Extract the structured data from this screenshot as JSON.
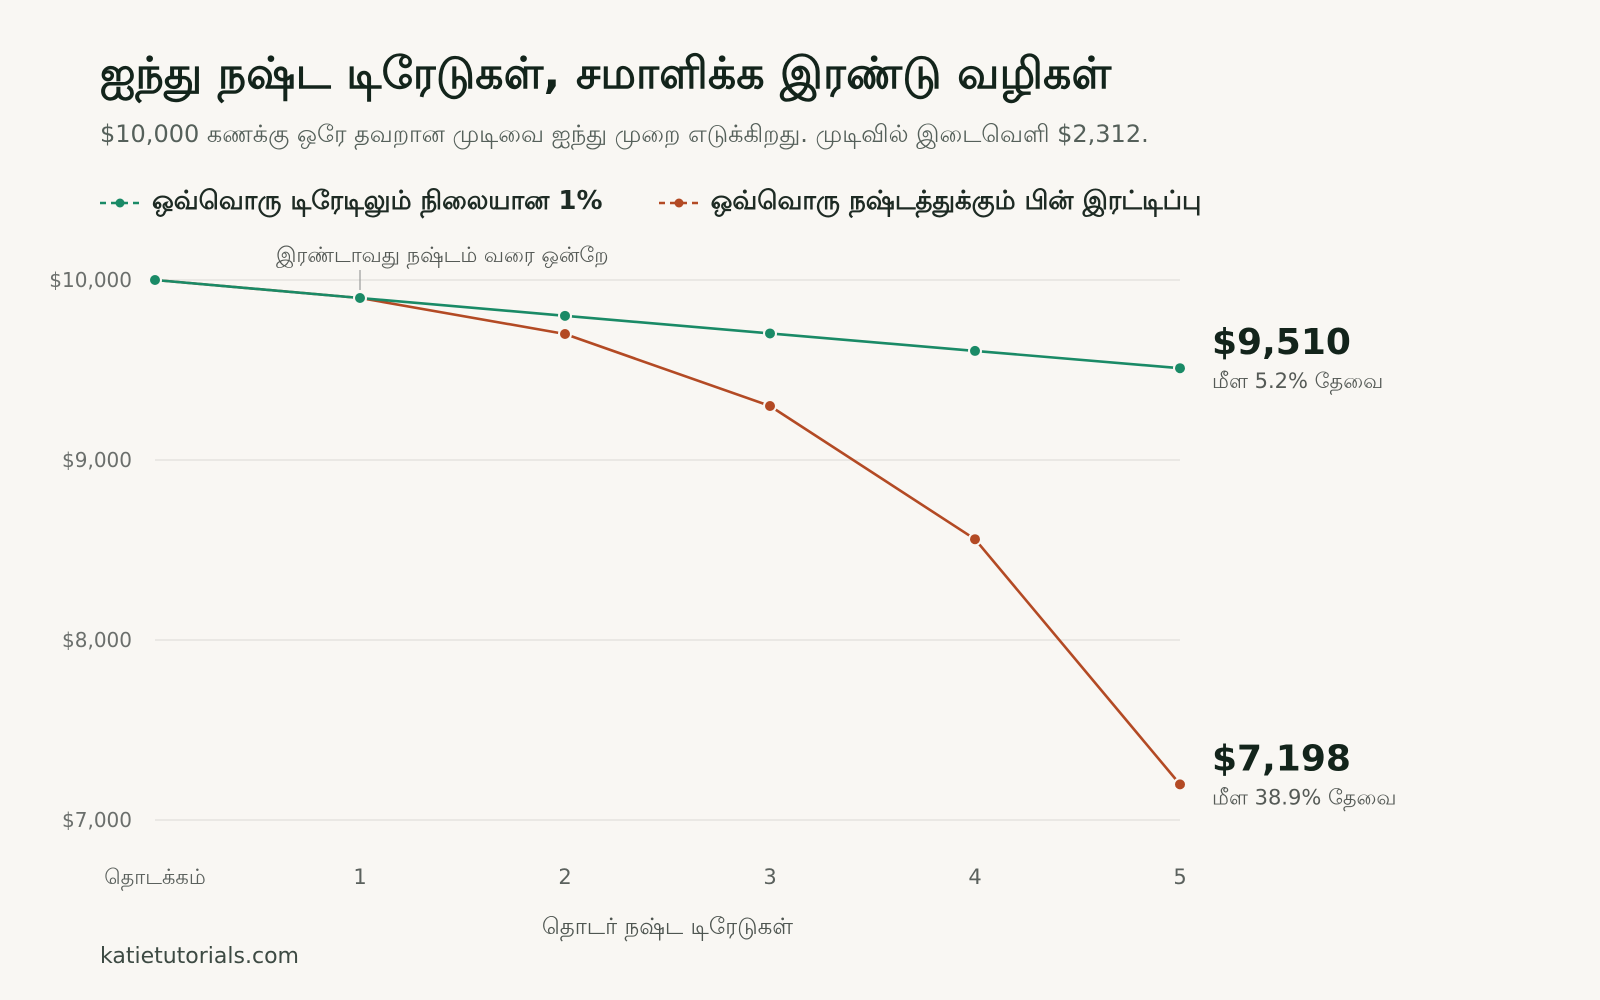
{
  "title": "ஐந்து நஷ்ட டிரேடுகள், சமாளிக்க இரண்டு வழிகள்",
  "subtitle": "$10,000 கணக்கு ஒரே தவறான முடிவை ஐந்து முறை எடுக்கிறது. முடிவில் இடைவெளி $2,312.",
  "source": "katietutorials.com",
  "colors": {
    "series_0": "#1a8a66",
    "series_1": "#b34a24",
    "background": "#f9f7f3",
    "grid": "#e6e4df"
  },
  "chart_data": {
    "type": "line",
    "title": "ஐந்து நஷ்ட டிரேடுகள், சமாளிக்க இரண்டு வழிகள்",
    "xlabel": "தொடர் நஷ்ட டிரேடுகள்",
    "ylabel": "",
    "categories": [
      "தொடக்கம்",
      "1",
      "2",
      "3",
      "4",
      "5"
    ],
    "yticks": [
      7000,
      8000,
      9000,
      10000
    ],
    "ytick_labels": [
      "$7,000",
      "$8,000",
      "$9,000",
      "$10,000"
    ],
    "ylim": [
      7000,
      10000
    ],
    "grid": true,
    "legend_position": "top",
    "series": [
      {
        "name": "ஒவ்வொரு டிரேடிலும் நிலையான 1%",
        "values": [
          10000,
          9900,
          9801,
          9703,
          9606,
          9510
        ],
        "end_value_label": "$9,510",
        "end_note": "மீள 5.2% தேவை"
      },
      {
        "name": "ஒவ்வொரு நஷ்டத்துக்கும் பின் இரட்டிப்பு",
        "values": [
          10000,
          9900,
          9700,
          9300,
          8560,
          7198
        ],
        "end_value_label": "$7,198",
        "end_note": "மீள 38.9% தேவை"
      }
    ],
    "annotations": [
      {
        "text": "இரண்டாவது நஷ்டம் வரை ஒன்றே",
        "x_index": 1,
        "value": 9900
      }
    ]
  }
}
